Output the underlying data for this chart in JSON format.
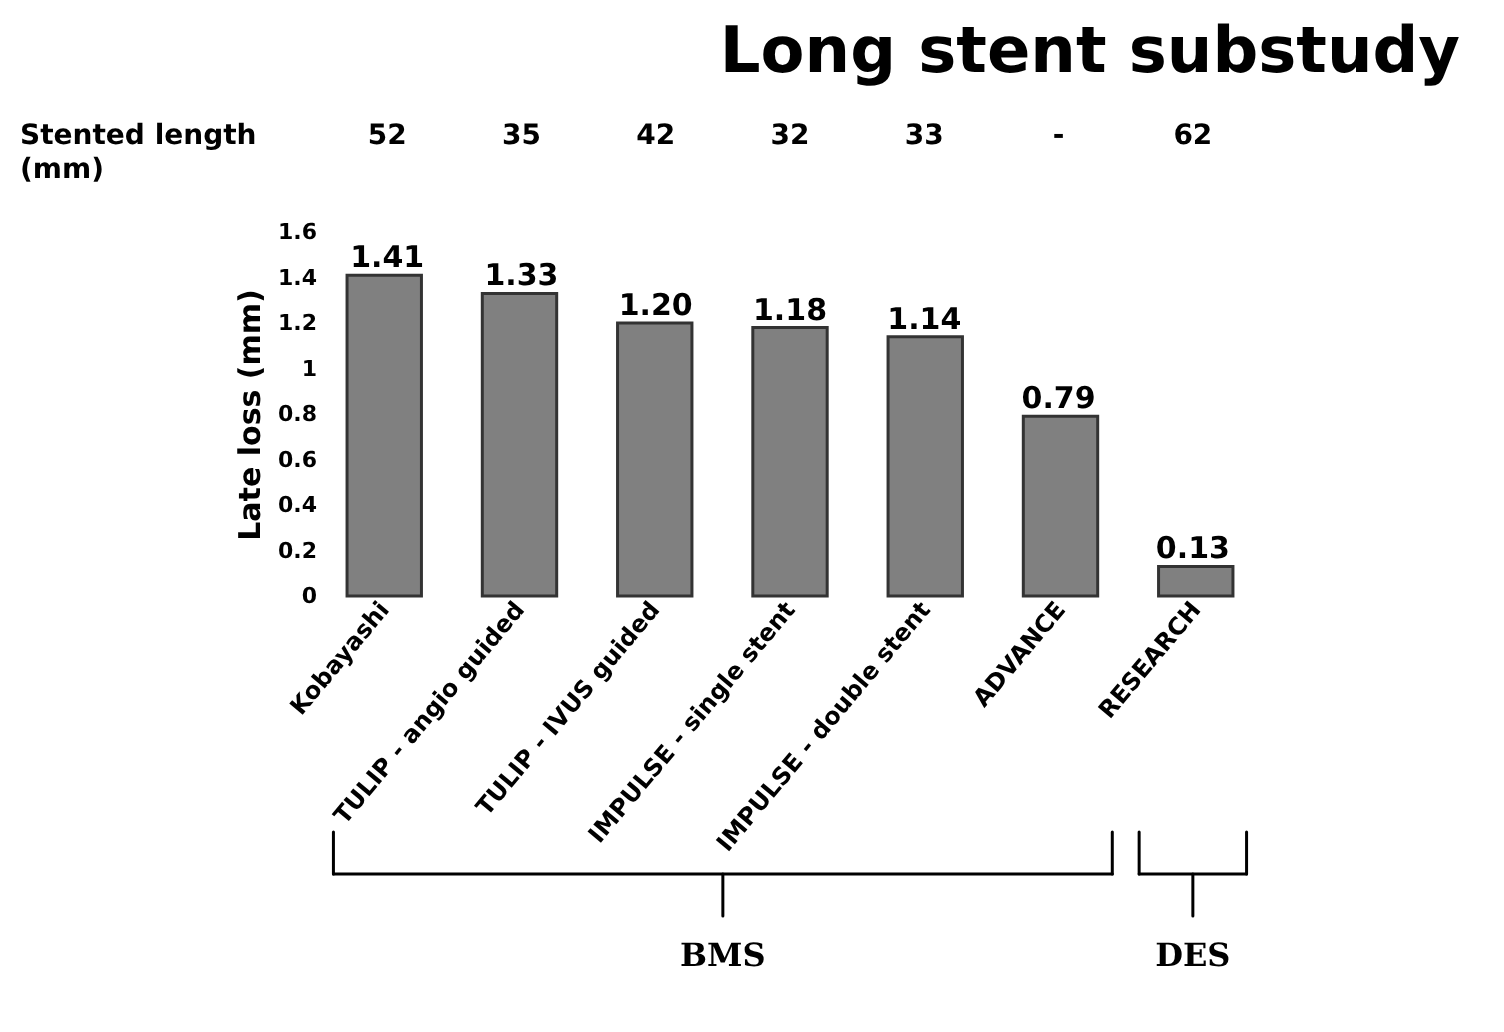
{
  "chart_data": {
    "type": "bar",
    "title": "Long stent substudy",
    "ylabel": "Late loss (mm)",
    "categories": [
      "Kobayashi",
      "TULIP - angio guided",
      "TULIP - IVUS guided",
      "IMPULSE - single stent",
      "IMPULSE - double stent",
      "ADVANCE",
      "RESEARCH"
    ],
    "values": [
      1.41,
      1.33,
      1.2,
      1.18,
      1.14,
      0.79,
      0.13
    ],
    "value_labels": [
      "1.41",
      "1.33",
      "1.20",
      "1.18",
      "1.14",
      "0.79",
      "0.13"
    ],
    "color": "#808080",
    "ylim": [
      0,
      1.6
    ],
    "yticks": [
      0,
      0.2,
      0.4,
      0.6,
      0.8,
      1,
      1.2,
      1.4,
      1.6
    ],
    "grid": false,
    "annotations": [
      "Stented length (mm)",
      "52",
      "35",
      "42",
      "32",
      "33",
      "-",
      "62",
      "BMS",
      "DES"
    ]
  }
}
